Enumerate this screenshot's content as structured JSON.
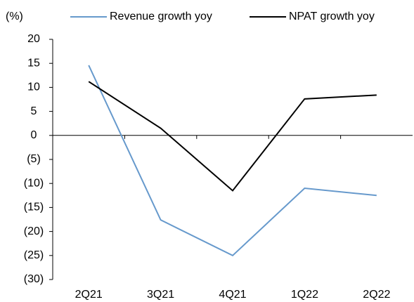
{
  "chart_data": {
    "type": "line",
    "y_axis_label": "(%)",
    "categories": [
      "2Q21",
      "3Q21",
      "4Q21",
      "1Q22",
      "2Q22"
    ],
    "series": [
      {
        "name": "Revenue growth yoy",
        "color": "#6699cc",
        "values": [
          14.6,
          -17.6,
          -25,
          -11,
          -12.5
        ]
      },
      {
        "name": "NPAT growth yoy",
        "color": "#000000",
        "values": [
          11.2,
          1.5,
          -11.5,
          7.6,
          8.4
        ]
      }
    ],
    "ylim": [
      -30,
      20
    ],
    "yticks": [
      {
        "value": -30,
        "label": "(30)"
      },
      {
        "value": -25,
        "label": "(25)"
      },
      {
        "value": -20,
        "label": "(20)"
      },
      {
        "value": -15,
        "label": "(15)"
      },
      {
        "value": -10,
        "label": "(10)"
      },
      {
        "value": -5,
        "label": "(5)"
      },
      0,
      5,
      10,
      15,
      20
    ],
    "legend": "top"
  }
}
